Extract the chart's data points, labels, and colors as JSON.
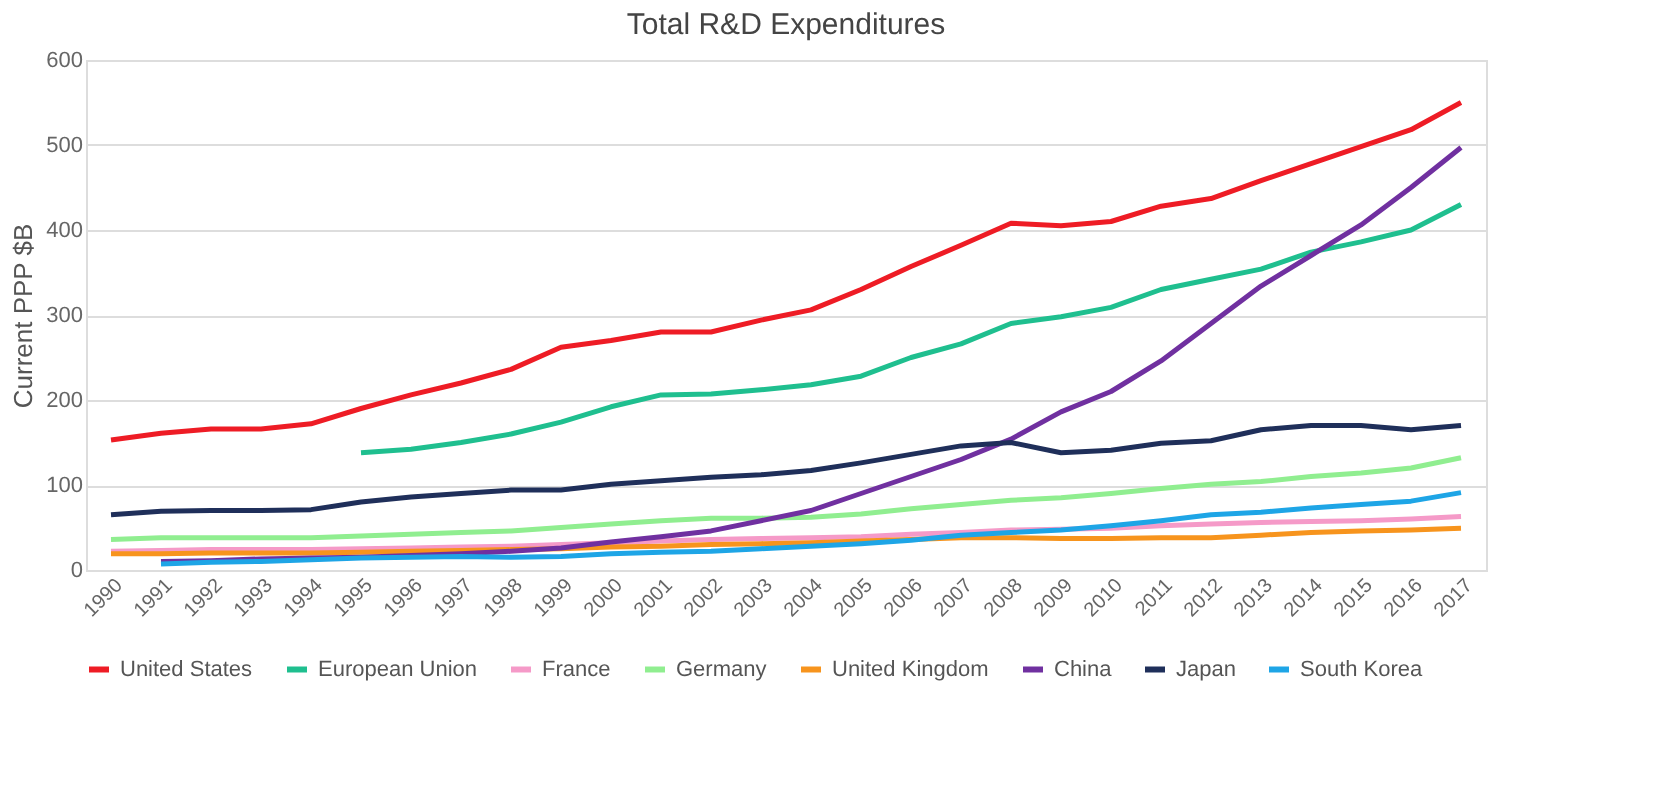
{
  "chart_data": {
    "type": "line",
    "title": "Total R&D Expenditures",
    "ylabel": "Current PPP $B",
    "categories": [
      "1990",
      "1991",
      "1992",
      "1993",
      "1994",
      "1995",
      "1996",
      "1997",
      "1998",
      "1999",
      "2000",
      "2001",
      "2002",
      "2003",
      "2004",
      "2005",
      "2006",
      "2007",
      "2008",
      "2009",
      "2010",
      "2011",
      "2012",
      "2013",
      "2014",
      "2015",
      "2016",
      "2017"
    ],
    "series": [
      {
        "name": "United States",
        "color": "#ee1c25",
        "values": [
          153,
          161,
          166,
          166,
          172,
          190,
          206,
          220,
          236,
          262,
          270,
          280,
          280,
          294,
          306,
          330,
          357,
          382,
          408,
          405,
          410,
          428,
          437,
          458,
          478,
          498,
          518,
          550
        ]
      },
      {
        "name": "European Union",
        "color": "#1fbf8f",
        "values": [
          null,
          null,
          null,
          null,
          null,
          138,
          142,
          150,
          160,
          174,
          192,
          206,
          207,
          212,
          218,
          228,
          250,
          266,
          290,
          298,
          309,
          330,
          342,
          354,
          374,
          386,
          400,
          430
        ]
      },
      {
        "name": "France",
        "color": "#f59ac8",
        "values": [
          22,
          23,
          24,
          24,
          24,
          25,
          26,
          27,
          28,
          30,
          32,
          34,
          36,
          37,
          38,
          39,
          42,
          44,
          47,
          48,
          49,
          52,
          54,
          56,
          57,
          58,
          60,
          63
        ]
      },
      {
        "name": "Germany",
        "color": "#90ee90",
        "values": [
          36,
          38,
          38,
          38,
          38,
          40,
          42,
          44,
          46,
          50,
          54,
          58,
          61,
          61,
          62,
          66,
          72,
          77,
          82,
          85,
          90,
          96,
          101,
          104,
          110,
          114,
          120,
          132
        ]
      },
      {
        "name": "United Kingdom",
        "color": "#f7941d",
        "values": [
          19,
          19,
          20,
          20,
          20,
          21,
          22,
          23,
          24,
          25,
          27,
          28,
          30,
          31,
          32,
          34,
          36,
          38,
          38,
          37,
          37,
          38,
          38,
          41,
          44,
          46,
          47,
          49
        ]
      },
      {
        "name": "China",
        "color": "#7030a0",
        "values": [
          null,
          10,
          11,
          13,
          14,
          15,
          17,
          19,
          22,
          26,
          33,
          39,
          46,
          58,
          70,
          90,
          110,
          130,
          154,
          186,
          210,
          246,
          290,
          334,
          370,
          406,
          450,
          497
        ]
      },
      {
        "name": "Japan",
        "color": "#1f2f5a",
        "values": [
          65,
          69,
          70,
          70,
          71,
          80,
          86,
          90,
          94,
          94,
          101,
          105,
          109,
          112,
          117,
          126,
          136,
          146,
          150,
          138,
          141,
          149,
          152,
          165,
          170,
          170,
          165,
          170
        ]
      },
      {
        "name": "South Korea",
        "color": "#1ea5e6",
        "values": [
          null,
          7,
          9,
          10,
          12,
          14,
          15,
          16,
          15,
          16,
          19,
          21,
          22,
          25,
          28,
          31,
          35,
          41,
          44,
          47,
          52,
          58,
          65,
          68,
          73,
          77,
          81,
          91
        ]
      }
    ],
    "ylim": [
      0,
      600
    ],
    "yticks": [
      0,
      100,
      200,
      300,
      400,
      500,
      600
    ],
    "grid": "y",
    "legend": "bottom",
    "line_style": "solid",
    "marker": "none"
  }
}
